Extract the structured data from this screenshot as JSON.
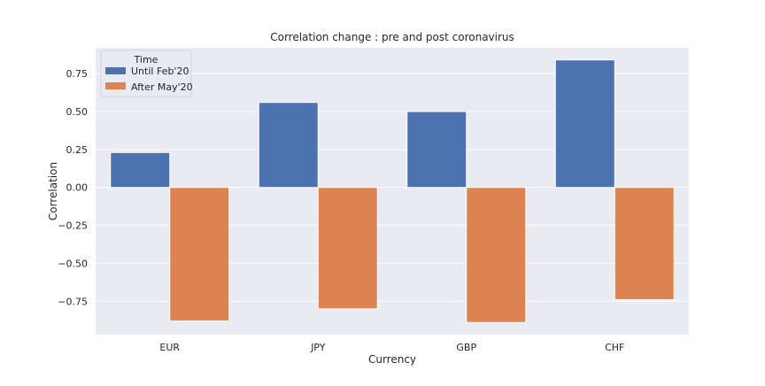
{
  "chart_data": {
    "type": "bar",
    "title": "Correlation change : pre and post coronavirus",
    "xlabel": "Currency",
    "ylabel": "Correlation",
    "categories": [
      "EUR",
      "JPY",
      "GBP",
      "CHF"
    ],
    "series": [
      {
        "name": "Until Feb'20",
        "values": [
          0.23,
          0.56,
          0.5,
          0.84
        ]
      },
      {
        "name": "After May'20",
        "values": [
          -0.88,
          -0.8,
          -0.89,
          -0.74
        ]
      }
    ],
    "ylim": [
      -0.97,
      0.92
    ],
    "yticks": [
      -0.75,
      -0.5,
      -0.25,
      0.0,
      0.25,
      0.5,
      0.75
    ],
    "ytick_labels": [
      "−0.75",
      "−0.50",
      "−0.25",
      "0.00",
      "0.25",
      "0.50",
      "0.75"
    ],
    "grid": true,
    "legend": {
      "title": "Time",
      "placement": "top-left"
    },
    "colors": {
      "series": [
        "#4c72b0",
        "#dd8452"
      ],
      "plot_background": "#eaeaf2",
      "grid": "#ffffff"
    }
  }
}
